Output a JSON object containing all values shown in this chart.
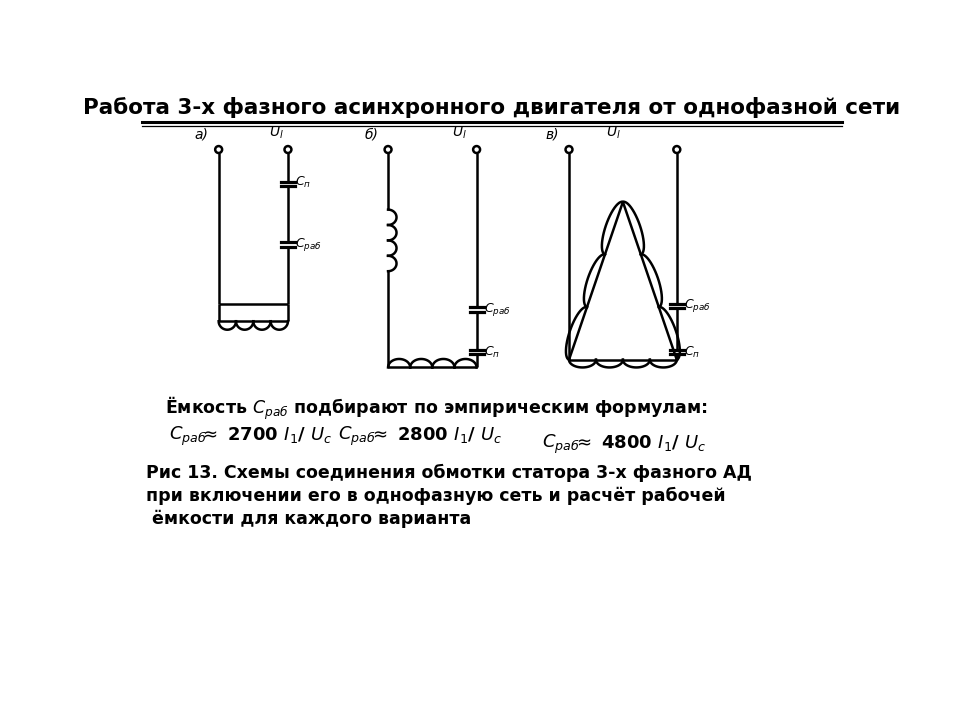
{
  "title": "Работа 3-х фазного асинхронного двигателя от однофазной сети",
  "bg_color": "#ffffff",
  "text_color": "#000000",
  "caption_emk": "Ёмкость ",
  "caption_crab": "C_{раб}",
  "caption_rest": " подбирают по эмпирическим формулам:",
  "caption2_line1": "Рис 13. Схемы соединения обмотки статора 3-х фазного АД",
  "caption2_line2": "при включении его в однофазную сеть и расчёт рабочей",
  "caption2_line3": " ёмкости для каждого варианта"
}
